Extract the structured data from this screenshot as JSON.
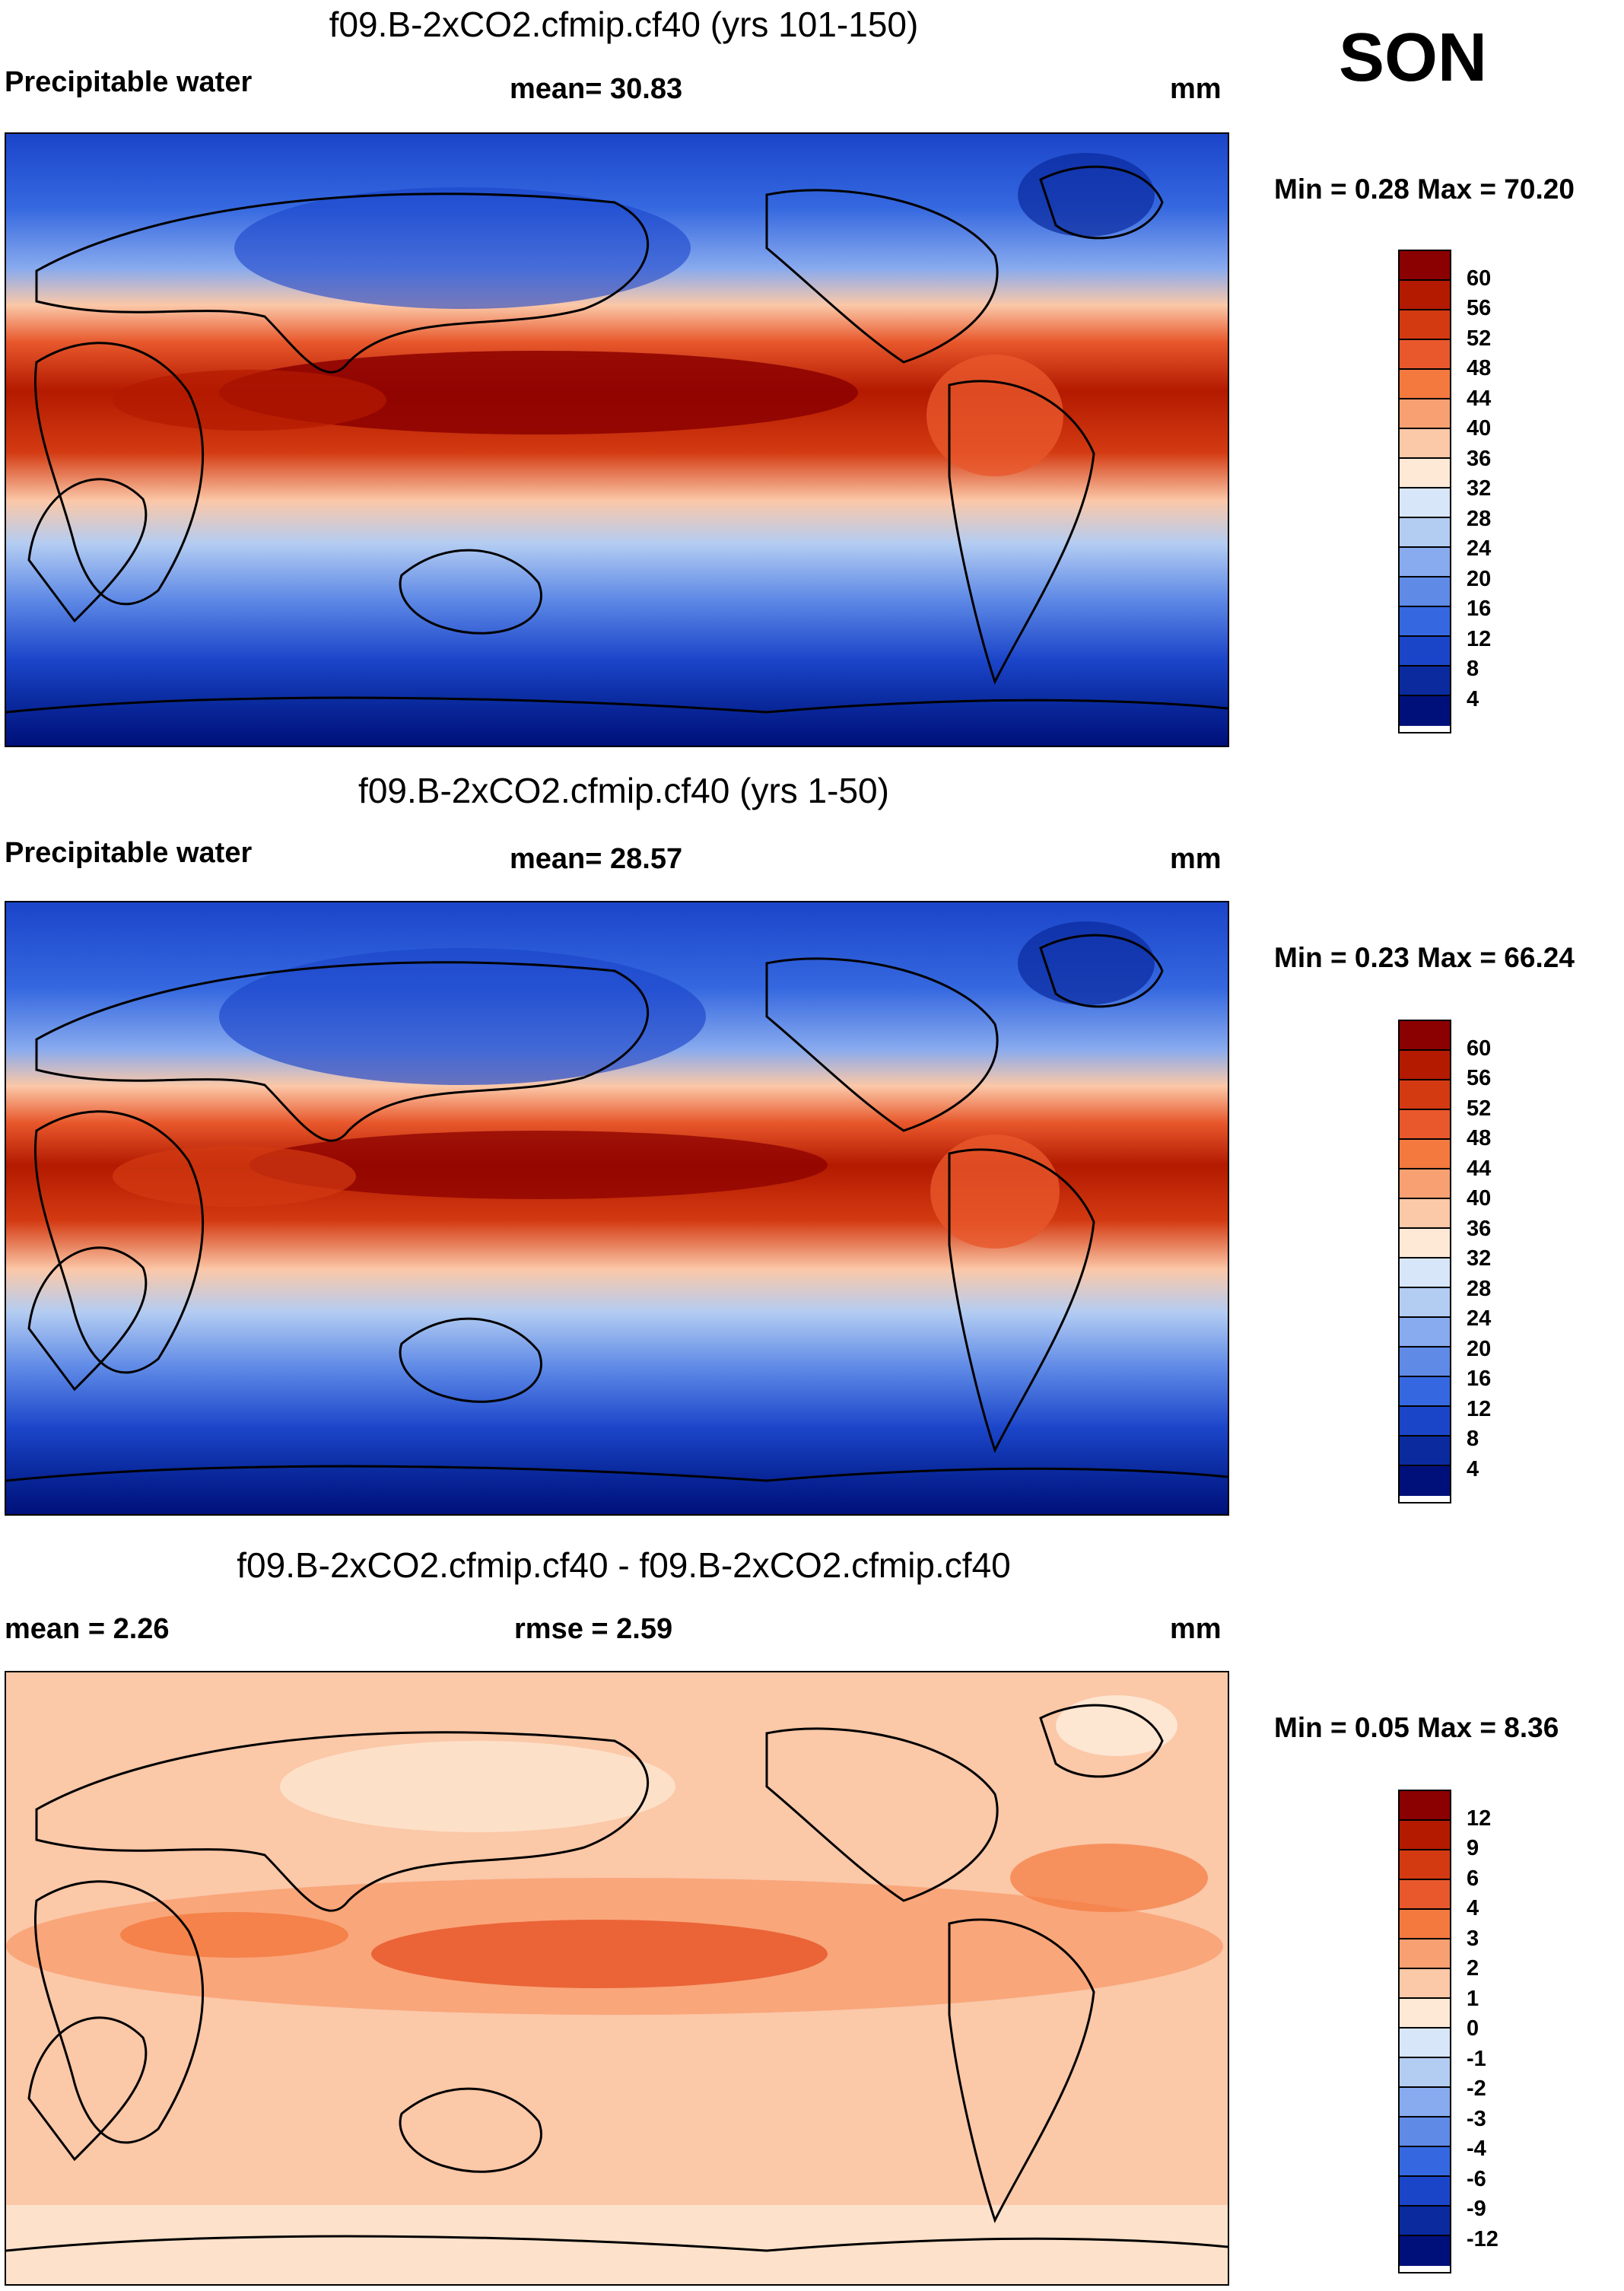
{
  "season": "SON",
  "panels": [
    {
      "title": "f09.B-2xCO2.cfmip.cf40 (yrs 101-150)",
      "left_label": "Precipitable water",
      "center_label": "mean=  30.83",
      "units": "mm",
      "minmax": "Min =   0.28 Max =  70.20",
      "colorbar_labels": [
        "60",
        "56",
        "52",
        "48",
        "44",
        "40",
        "36",
        "32",
        "28",
        "24",
        "20",
        "16",
        "12",
        "8",
        "4"
      ],
      "colorbar_colors": [
        "#8b0000",
        "#b31a00",
        "#d33a12",
        "#e8582c",
        "#f3793f",
        "#f8a072",
        "#fbc8a8",
        "#fde9d6",
        "#d7e6f8",
        "#b3ccf2",
        "#88aaee",
        "#5f8ae6",
        "#3568e0",
        "#1b45c9",
        "#0a2a9e",
        "#00107a"
      ]
    },
    {
      "title": "f09.B-2xCO2.cfmip.cf40 (yrs 1-50)",
      "left_label": "Precipitable water",
      "center_label": "mean=  28.57",
      "units": "mm",
      "minmax": "Min =   0.23 Max =  66.24",
      "colorbar_labels": [
        "60",
        "56",
        "52",
        "48",
        "44",
        "40",
        "36",
        "32",
        "28",
        "24",
        "20",
        "16",
        "12",
        "8",
        "4"
      ],
      "colorbar_colors": [
        "#8b0000",
        "#b31a00",
        "#d33a12",
        "#e8582c",
        "#f3793f",
        "#f8a072",
        "#fbc8a8",
        "#fde9d6",
        "#d7e6f8",
        "#b3ccf2",
        "#88aaee",
        "#5f8ae6",
        "#3568e0",
        "#1b45c9",
        "#0a2a9e",
        "#00107a"
      ]
    },
    {
      "title": "f09.B-2xCO2.cfmip.cf40 - f09.B-2xCO2.cfmip.cf40",
      "left_label": "mean =   2.26",
      "center_label": "rmse =   2.59",
      "units": "mm",
      "minmax": "Min =   0.05 Max =   8.36",
      "colorbar_labels": [
        "12",
        "9",
        "6",
        "4",
        "3",
        "2",
        "1",
        "0",
        "-1",
        "-2",
        "-3",
        "-4",
        "-6",
        "-9",
        "-12"
      ],
      "colorbar_colors": [
        "#8b0000",
        "#b31a00",
        "#d33a12",
        "#e8582c",
        "#f3793f",
        "#f8a072",
        "#fbc8a8",
        "#fde9d6",
        "#d7e6f8",
        "#b3ccf2",
        "#88aaee",
        "#5f8ae6",
        "#3568e0",
        "#1b45c9",
        "#0a2a9e",
        "#00107a"
      ]
    }
  ]
}
